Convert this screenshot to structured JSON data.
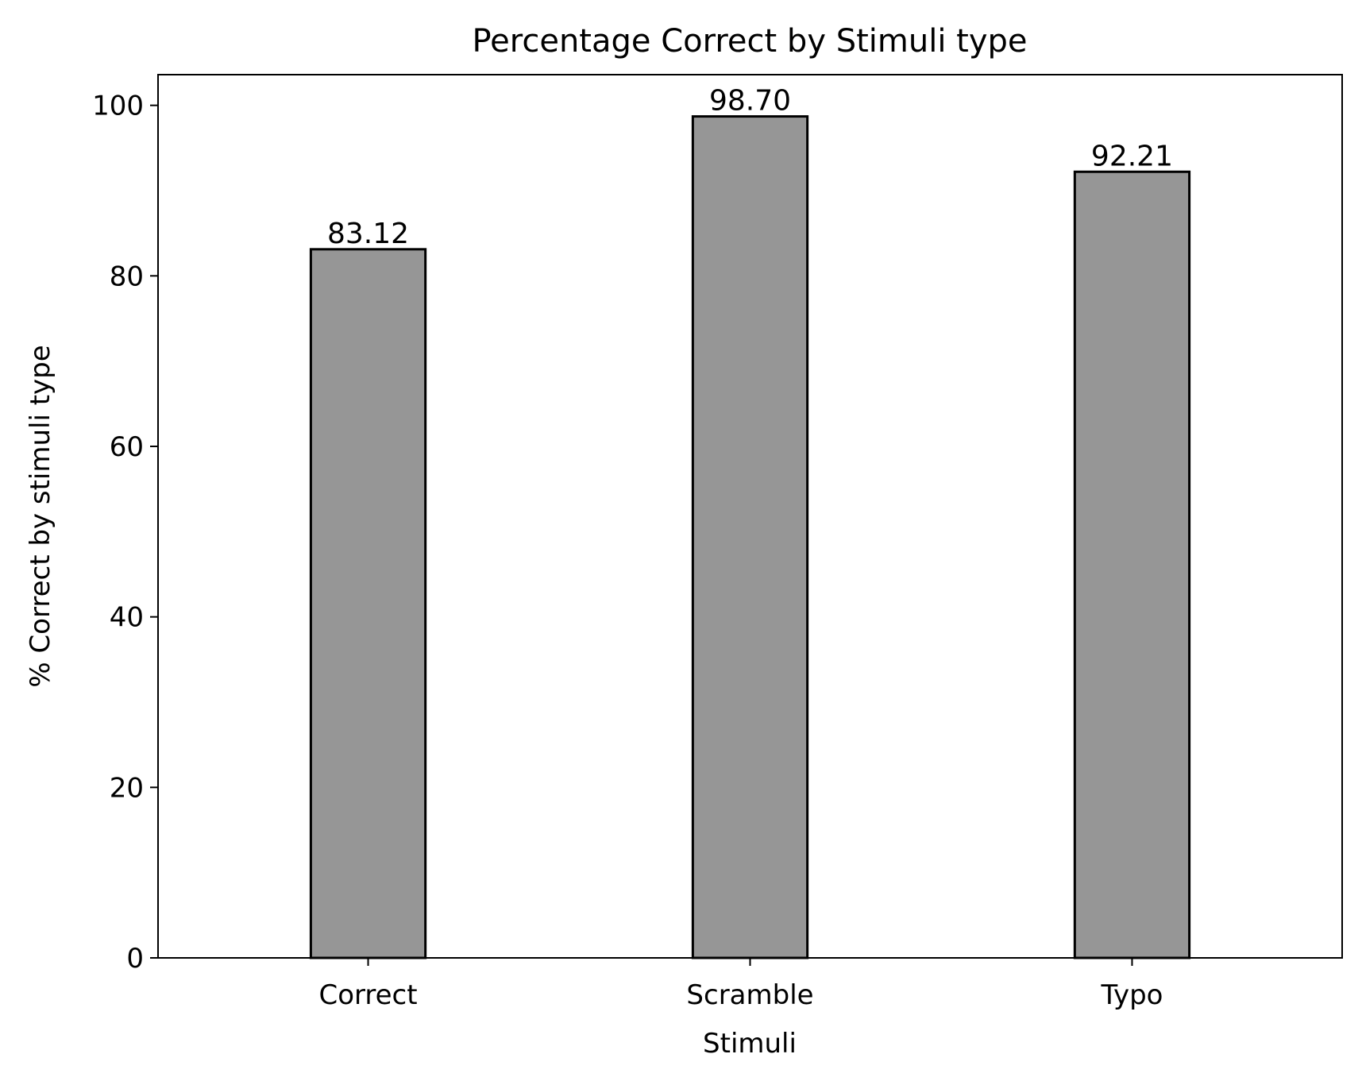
{
  "chart_data": {
    "type": "bar",
    "title": "Percentage Correct by Stimuli type",
    "xlabel": "Stimuli",
    "ylabel": "% Correct by stimuli type",
    "categories": [
      "Correct",
      "Scramble",
      "Typo"
    ],
    "values": [
      83.12,
      98.7,
      92.21
    ],
    "value_labels": [
      "83.12",
      "98.70",
      "92.21"
    ],
    "ylim": [
      0,
      103.6
    ],
    "yticks": [
      0,
      20,
      40,
      60,
      80,
      100
    ],
    "ytick_labels": [
      "0",
      "20",
      "40",
      "60",
      "80",
      "100"
    ],
    "grid": false,
    "legend": "none",
    "colors": {
      "bar_fill": "#969696",
      "bar_edge": "#000000",
      "axes": "#000000",
      "text": "#000000",
      "background": "#ffffff"
    }
  }
}
